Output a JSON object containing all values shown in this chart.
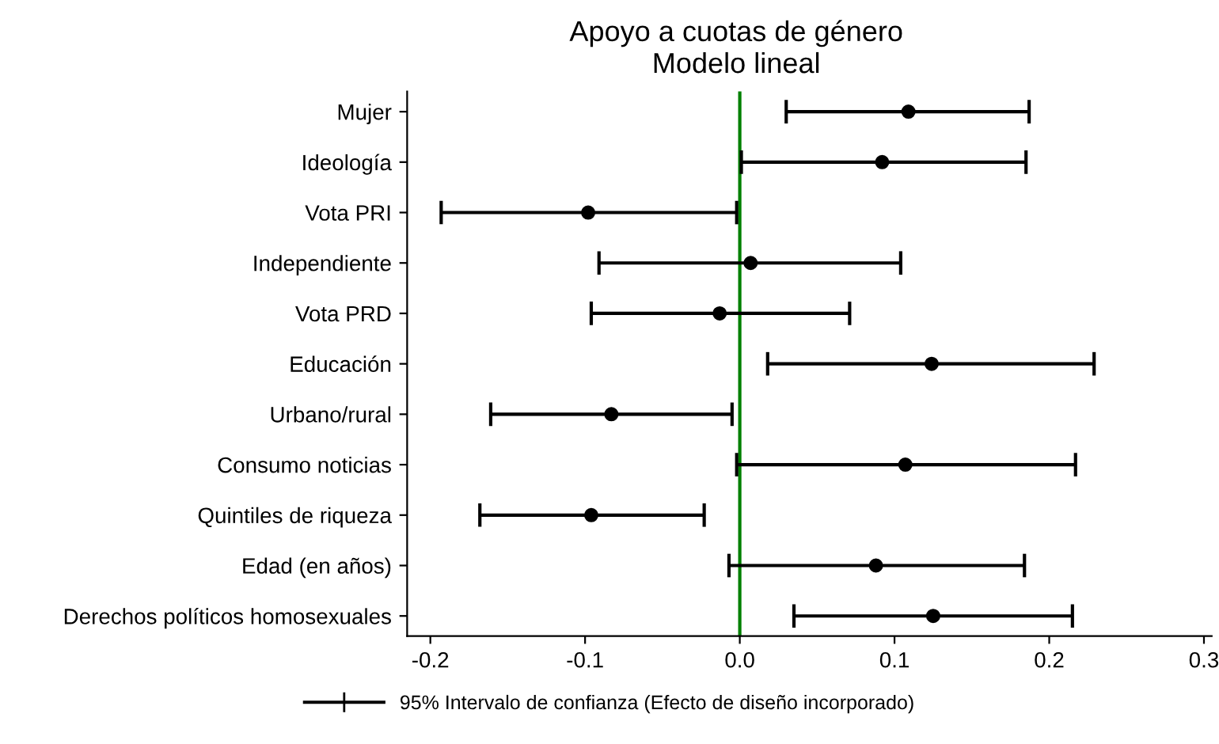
{
  "chart_data": {
    "type": "scatter",
    "orientation": "horizontal",
    "title": "Apoyo a cuotas de género",
    "subtitle": "Modelo lineal",
    "categories": [
      "Mujer",
      "Ideología",
      "Vota PRI",
      "Independiente",
      "Vota PRD",
      "Educación",
      "Urbano/rural",
      "Consumo noticias",
      "Quintiles de riqueza",
      "Edad (en años)",
      "Derechos políticos homosexuales"
    ],
    "series": [
      {
        "name": "95% Intervalo de confianza (Efecto de diseño incorporado)",
        "color": "#000000",
        "values": [
          0.109,
          0.092,
          -0.098,
          0.007,
          -0.013,
          0.124,
          -0.083,
          0.107,
          -0.096,
          0.088,
          0.125
        ],
        "errors": [
          [
            0.03,
            0.187
          ],
          [
            0.001,
            0.185
          ],
          [
            -0.193,
            -0.002
          ],
          [
            -0.091,
            0.104
          ],
          [
            -0.096,
            0.071
          ],
          [
            0.018,
            0.229
          ],
          [
            -0.161,
            -0.005
          ],
          [
            -0.002,
            0.217
          ],
          [
            -0.168,
            -0.023
          ],
          [
            -0.007,
            0.184
          ],
          [
            0.035,
            0.215
          ]
        ]
      }
    ],
    "xlim": [
      -0.215,
      0.305
    ],
    "xticks": [
      {
        "value": -0.2,
        "label": "-0.2"
      },
      {
        "value": -0.1,
        "label": "-0.1"
      },
      {
        "value": 0,
        "label": "0.0"
      },
      {
        "value": 0.1,
        "label": "0.1"
      },
      {
        "value": 0.2,
        "label": "0.2"
      },
      {
        "value": 0.3,
        "label": "0.3"
      }
    ],
    "ref_lines": [
      {
        "axis": "x",
        "value": 0,
        "color": "#008000"
      }
    ],
    "marker": "circle",
    "grid": false,
    "legend": "bottom"
  }
}
